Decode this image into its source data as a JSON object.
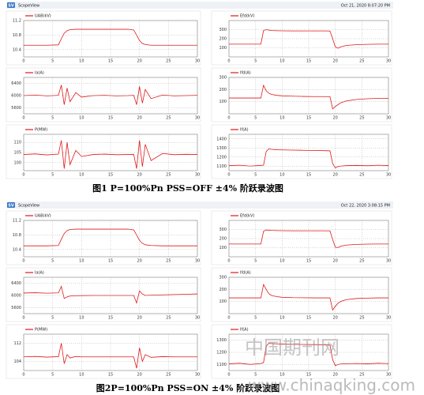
{
  "figures": [
    {
      "badge": "SV",
      "app": "ScopeView",
      "timestamp": "Oct 21, 2020 8:07:20 PM",
      "caption": "图1 P=100%Pn PSS=OFF ±4% 阶跃录波图"
    },
    {
      "badge": "SV",
      "app": "ScopeView",
      "timestamp": "Oct 22, 2020 3:08:15 PM",
      "caption": "图2P=100%Pn PSS=ON ±4% 阶跃录波图"
    }
  ],
  "watermark": {
    "logo": "中国期刊网",
    "url": "www.chinaqking.com"
  },
  "chart_data": [
    {
      "type": "line",
      "x": [
        0,
        2,
        4,
        6,
        6.5,
        7,
        7.5,
        8,
        9,
        10,
        12,
        14,
        16,
        18,
        19,
        19.5,
        20,
        20.5,
        21,
        22,
        24,
        26,
        28,
        30
      ],
      "xlim": [
        0,
        30
      ],
      "xticks": [
        0,
        5,
        10,
        15,
        20,
        25,
        30
      ],
      "ylim": [
        10.2,
        11.2
      ],
      "yticks": [
        10.4,
        10.8,
        11.2
      ],
      "grid": true,
      "series": [
        {
          "name": "UAB(kV)",
          "color": "#e01818",
          "values": [
            10.52,
            10.52,
            10.52,
            10.53,
            10.7,
            10.85,
            10.92,
            10.95,
            10.96,
            10.96,
            10.96,
            10.96,
            10.96,
            10.96,
            10.94,
            10.8,
            10.65,
            10.57,
            10.54,
            10.52,
            10.52,
            10.52,
            10.52,
            10.52
          ]
        }
      ]
    },
    {
      "type": "line",
      "x": [
        0,
        2,
        4,
        6,
        6.5,
        7,
        7.5,
        8,
        9,
        10,
        12,
        14,
        16,
        18,
        19,
        19.5,
        20,
        20.5,
        21,
        22,
        24,
        26,
        28,
        30
      ],
      "xlim": [
        0,
        30
      ],
      "xticks": [
        0,
        5,
        10,
        15,
        20,
        25,
        30
      ],
      "ylim": [
        0,
        400
      ],
      "yticks": [
        100,
        200,
        300
      ],
      "grid": true,
      "series": [
        {
          "name": "Efd(kV)",
          "color": "#e01818",
          "values": [
            140,
            140,
            140,
            140,
            290,
            300,
            295,
            290,
            288,
            287,
            286,
            286,
            286,
            286,
            285,
            200,
            110,
            95,
            110,
            125,
            135,
            138,
            140,
            140
          ]
        }
      ]
    },
    {
      "type": "line",
      "x": [
        0,
        2,
        4,
        6,
        6.5,
        7,
        7.5,
        8,
        9,
        10,
        12,
        14,
        16,
        18,
        19,
        19.5,
        20,
        20.5,
        21,
        22,
        24,
        26,
        28,
        30
      ],
      "xlim": [
        0,
        30
      ],
      "xticks": [
        0,
        5,
        10,
        15,
        20,
        25,
        30
      ],
      "ylim": [
        5400,
        6600
      ],
      "yticks": [
        5600,
        6000,
        6400
      ],
      "grid": true,
      "series": [
        {
          "name": "Ia(A)",
          "color": "#e01818",
          "values": [
            6000,
            6020,
            5990,
            6010,
            6350,
            5700,
            6250,
            5800,
            6100,
            5950,
            6000,
            6010,
            5990,
            6000,
            6010,
            5700,
            6300,
            5750,
            6200,
            5900,
            6020,
            5990,
            6000,
            6010
          ]
        }
      ]
    },
    {
      "type": "line",
      "x": [
        0,
        2,
        4,
        6,
        6.5,
        7,
        7.5,
        8,
        9,
        10,
        12,
        14,
        16,
        18,
        19,
        19.5,
        20,
        20.5,
        21,
        22,
        24,
        26,
        28,
        30
      ],
      "xlim": [
        0,
        30
      ],
      "xticks": [
        0,
        5,
        10,
        15,
        20,
        25,
        30
      ],
      "ylim": [
        0,
        300
      ],
      "yticks": [
        100,
        200,
        300
      ],
      "grid": true,
      "series": [
        {
          "name": "Ifd(A)",
          "color": "#e01818",
          "values": [
            130,
            130,
            130,
            130,
            235,
            190,
            170,
            160,
            152,
            148,
            145,
            143,
            142,
            142,
            141,
            40,
            60,
            75,
            90,
            105,
            118,
            124,
            127,
            128
          ]
        }
      ]
    },
    {
      "type": "line",
      "x": [
        0,
        2,
        4,
        6,
        6.5,
        7,
        7.5,
        8,
        9,
        10,
        12,
        14,
        16,
        18,
        19,
        19.5,
        20,
        20.5,
        21,
        22,
        24,
        26,
        28,
        30
      ],
      "xlim": [
        0,
        30
      ],
      "xticks": [
        0,
        5,
        10,
        15,
        20,
        25,
        30
      ],
      "ylim": [
        96,
        114
      ],
      "yticks": [
        100,
        105,
        110
      ],
      "grid": true,
      "series": [
        {
          "name": "P(MW)",
          "color": "#e01818",
          "values": [
            104,
            104.3,
            103.8,
            104.2,
            111,
            97,
            110,
            99,
            106,
            103,
            104,
            104.2,
            103.9,
            104,
            104.1,
            97,
            111,
            98,
            109,
            101,
            104.5,
            103.9,
            104.1,
            104
          ]
        }
      ]
    },
    {
      "type": "line",
      "x": [
        0,
        2,
        4,
        6,
        6.5,
        7,
        7.5,
        8,
        9,
        10,
        12,
        14,
        16,
        18,
        19,
        19.5,
        20,
        20.5,
        21,
        22,
        24,
        26,
        28,
        30
      ],
      "xlim": [
        0,
        30
      ],
      "xticks": [
        0,
        5,
        10,
        15,
        20,
        25,
        30
      ],
      "ylim": [
        1050,
        1450
      ],
      "yticks": [
        1100,
        1200,
        1300,
        1400
      ],
      "grid": true,
      "series": [
        {
          "name": "If(A)",
          "color": "#e01818",
          "values": [
            1105,
            1110,
            1100,
            1108,
            1110,
            1260,
            1290,
            1285,
            1280,
            1278,
            1276,
            1274,
            1272,
            1270,
            1268,
            1130,
            1080,
            1095,
            1100,
            1105,
            1108,
            1104,
            1110,
            1106
          ]
        }
      ]
    },
    {
      "type": "line",
      "x": [
        0,
        2,
        4,
        6,
        6.5,
        7,
        7.5,
        8,
        9,
        10,
        12,
        14,
        16,
        18,
        19,
        19.5,
        20,
        20.5,
        21,
        22,
        24,
        26,
        28,
        30
      ],
      "xlim": [
        0,
        30
      ],
      "xticks": [
        0,
        5,
        10,
        15,
        20,
        25,
        30
      ],
      "ylim": [
        10.2,
        11.2
      ],
      "yticks": [
        10.4,
        10.8,
        11.2
      ],
      "grid": true,
      "series": [
        {
          "name": "UAB(kV)",
          "color": "#e01818",
          "values": [
            10.5,
            10.5,
            10.5,
            10.51,
            10.68,
            10.84,
            10.92,
            10.95,
            10.96,
            10.96,
            10.96,
            10.96,
            10.96,
            10.96,
            10.94,
            10.8,
            10.65,
            10.57,
            10.53,
            10.51,
            10.5,
            10.5,
            10.5,
            10.5
          ]
        }
      ]
    },
    {
      "type": "line",
      "x": [
        0,
        2,
        4,
        6,
        6.5,
        7,
        7.5,
        8,
        9,
        10,
        12,
        14,
        16,
        18,
        19,
        19.5,
        20,
        20.5,
        21,
        22,
        24,
        26,
        28,
        30
      ],
      "xlim": [
        0,
        30
      ],
      "xticks": [
        0,
        5,
        10,
        15,
        20,
        25,
        30
      ],
      "ylim": [
        0,
        400
      ],
      "yticks": [
        100,
        200,
        300
      ],
      "grid": true,
      "series": [
        {
          "name": "Efd(kV)",
          "color": "#e01818",
          "values": [
            140,
            140,
            140,
            140,
            280,
            295,
            292,
            290,
            288,
            287,
            286,
            286,
            286,
            286,
            285,
            190,
            105,
            100,
            115,
            128,
            136,
            139,
            140,
            140
          ]
        }
      ]
    },
    {
      "type": "line",
      "x": [
        0,
        2,
        4,
        6,
        6.5,
        7,
        7.5,
        8,
        9,
        10,
        12,
        14,
        16,
        18,
        19,
        19.5,
        20,
        20.5,
        21,
        22,
        24,
        26,
        28,
        30
      ],
      "xlim": [
        0,
        30
      ],
      "xticks": [
        0,
        5,
        10,
        15,
        20,
        25,
        30
      ],
      "ylim": [
        5400,
        6600
      ],
      "yticks": [
        5600,
        6000,
        6400
      ],
      "grid": true,
      "series": [
        {
          "name": "Ia(A)",
          "color": "#e01818",
          "values": [
            6080,
            6090,
            6075,
            6085,
            6300,
            5900,
            5950,
            5980,
            5990,
            5995,
            6000,
            6000,
            6000,
            6000,
            6000,
            5750,
            6150,
            6050,
            6000,
            6010,
            6020,
            6030,
            6040,
            6050
          ]
        }
      ]
    },
    {
      "type": "line",
      "x": [
        0,
        2,
        4,
        6,
        6.5,
        7,
        7.5,
        8,
        9,
        10,
        12,
        14,
        16,
        18,
        19,
        19.5,
        20,
        20.5,
        21,
        22,
        24,
        26,
        28,
        30
      ],
      "xlim": [
        0,
        30
      ],
      "xticks": [
        0,
        5,
        10,
        15,
        20,
        25,
        30
      ],
      "ylim": [
        0,
        300
      ],
      "yticks": [
        100,
        200,
        300
      ],
      "grid": true,
      "series": [
        {
          "name": "Ifd(A)",
          "color": "#e01818",
          "values": [
            130,
            130,
            130,
            130,
            240,
            200,
            165,
            150,
            140,
            135,
            132,
            131,
            130,
            130,
            130,
            30,
            60,
            85,
            100,
            115,
            125,
            128,
            130,
            130
          ]
        }
      ]
    },
    {
      "type": "line",
      "x": [
        0,
        2,
        4,
        6,
        6.5,
        7,
        7.5,
        8,
        9,
        10,
        12,
        14,
        16,
        18,
        19,
        19.5,
        20,
        20.5,
        21,
        22,
        24,
        26,
        28,
        30
      ],
      "xlim": [
        0,
        30
      ],
      "xticks": [
        0,
        5,
        10,
        15,
        20,
        25,
        30
      ],
      "ylim": [
        100,
        116
      ],
      "yticks": [
        104,
        112
      ],
      "grid": true,
      "series": [
        {
          "name": "P(MW)",
          "color": "#e01818",
          "values": [
            106,
            106.2,
            105.9,
            106.1,
            112,
            103,
            107,
            105.5,
            106.2,
            106,
            106,
            106,
            106,
            106,
            106,
            101,
            110,
            104,
            107,
            105.8,
            106.1,
            106,
            106,
            106
          ]
        }
      ]
    },
    {
      "type": "line",
      "x": [
        0,
        2,
        4,
        6,
        6.5,
        7,
        7.5,
        8,
        9,
        10,
        12,
        14,
        16,
        18,
        19,
        19.5,
        20,
        20.5,
        21,
        22,
        24,
        26,
        28,
        30
      ],
      "xlim": [
        0,
        30
      ],
      "xticks": [
        0,
        5,
        10,
        15,
        20,
        25,
        30
      ],
      "ylim": [
        1050,
        1350
      ],
      "yticks": [
        1100,
        1200,
        1300
      ],
      "grid": true,
      "series": [
        {
          "name": "If(A)",
          "color": "#e01818",
          "values": [
            1105,
            1110,
            1100,
            1108,
            1115,
            1250,
            1275,
            1272,
            1270,
            1268,
            1266,
            1265,
            1264,
            1262,
            1260,
            1140,
            1090,
            1100,
            1104,
            1106,
            1108,
            1105,
            1110,
            1107
          ]
        }
      ]
    }
  ]
}
